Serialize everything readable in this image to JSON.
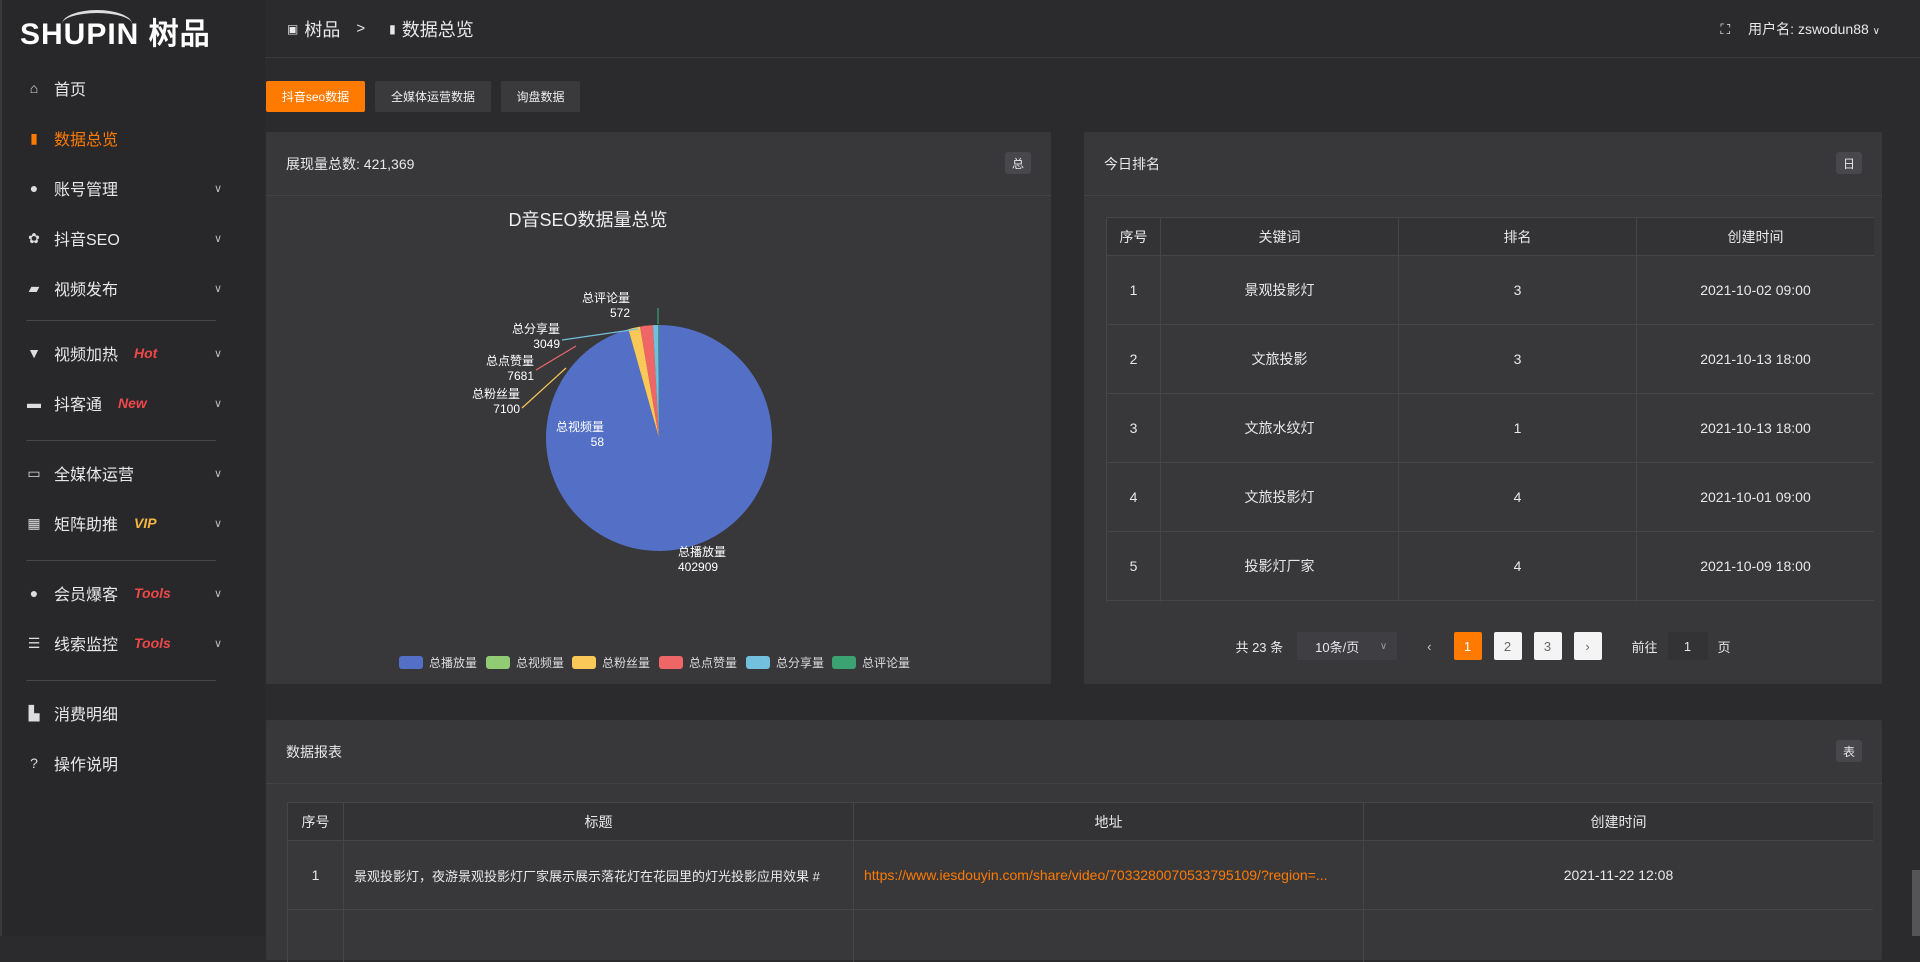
{
  "logo": {
    "text": "SHUPIN 树品"
  },
  "sidebar": {
    "items": [
      {
        "label": "首页",
        "icon": "home-icon"
      },
      {
        "label": "数据总览",
        "icon": "bar-chart-icon",
        "active": true
      },
      {
        "label": "账号管理",
        "icon": "user-icon"
      },
      {
        "label": "抖音SEO",
        "icon": "gear-icon"
      },
      {
        "label": "视频发布",
        "icon": "camera-icon"
      },
      {
        "label": "视频加热",
        "icon": "monitor-icon",
        "badge": "Hot"
      },
      {
        "label": "抖客通",
        "icon": "chat-icon",
        "badge": "New"
      },
      {
        "label": "全媒体运营",
        "icon": "desktop-icon"
      },
      {
        "label": "矩阵助推",
        "icon": "grid-icon",
        "badge": "VIP"
      },
      {
        "label": "会员爆客",
        "icon": "user-icon",
        "badge": "Tools"
      },
      {
        "label": "线索监控",
        "icon": "sliders-icon",
        "badge": "Tools"
      },
      {
        "label": "消费明细",
        "icon": "wallet-icon"
      },
      {
        "label": "操作说明",
        "icon": "help-icon"
      }
    ]
  },
  "header": {
    "breadcrumb": [
      "树品",
      "数据总览"
    ],
    "separator": ">",
    "user_label": "用户名: zswodun88"
  },
  "tabs": [
    {
      "label": "抖音seo数据",
      "active": true
    },
    {
      "label": "全媒体运营数据"
    },
    {
      "label": "询盘数据"
    }
  ],
  "overview": {
    "title": "展现量总数: 421,369",
    "tag": "总"
  },
  "chart_data": {
    "type": "pie",
    "title": "D音SEO数据量总览",
    "legend_position": "bottom",
    "categories": [
      "总播放量",
      "总视频量",
      "总粉丝量",
      "总点赞量",
      "总分享量",
      "总评论量"
    ],
    "values": [
      402909,
      58,
      7100,
      7681,
      3049,
      572
    ],
    "colors": [
      "#5470c6",
      "#91cc75",
      "#fac858",
      "#ee6666",
      "#73c0de",
      "#3ba272"
    ]
  },
  "ranking": {
    "title": "今日排名",
    "tag": "日",
    "columns": [
      "序号",
      "关键词",
      "排名",
      "创建时间"
    ],
    "rows": [
      [
        "1",
        "景观投影灯",
        "3",
        "2021-10-02 09:00"
      ],
      [
        "2",
        "文旅投影",
        "3",
        "2021-10-13 18:00"
      ],
      [
        "3",
        "文旅水纹灯",
        "1",
        "2021-10-13 18:00"
      ],
      [
        "4",
        "文旅投影灯",
        "4",
        "2021-10-01 09:00"
      ],
      [
        "5",
        "投影灯厂家",
        "4",
        "2021-10-09 18:00"
      ]
    ],
    "pager": {
      "total": "共 23 条",
      "page_size": "10条/页",
      "pages": [
        "1",
        "2",
        "3"
      ],
      "current": 1,
      "goto_label": "前往",
      "goto_value": "1",
      "page_unit": "页"
    }
  },
  "report": {
    "title": "数据报表",
    "tag": "表",
    "columns": [
      "序号",
      "标题",
      "地址",
      "创建时间"
    ],
    "rows": [
      [
        "1",
        "景观投影灯，夜游景观投影灯厂家展示展示落花灯在花园里的灯光投影应用效果 #",
        "https://www.iesdouyin.com/share/video/7033280070533795109/?region=...",
        "2021-11-22 12:08"
      ]
    ]
  }
}
